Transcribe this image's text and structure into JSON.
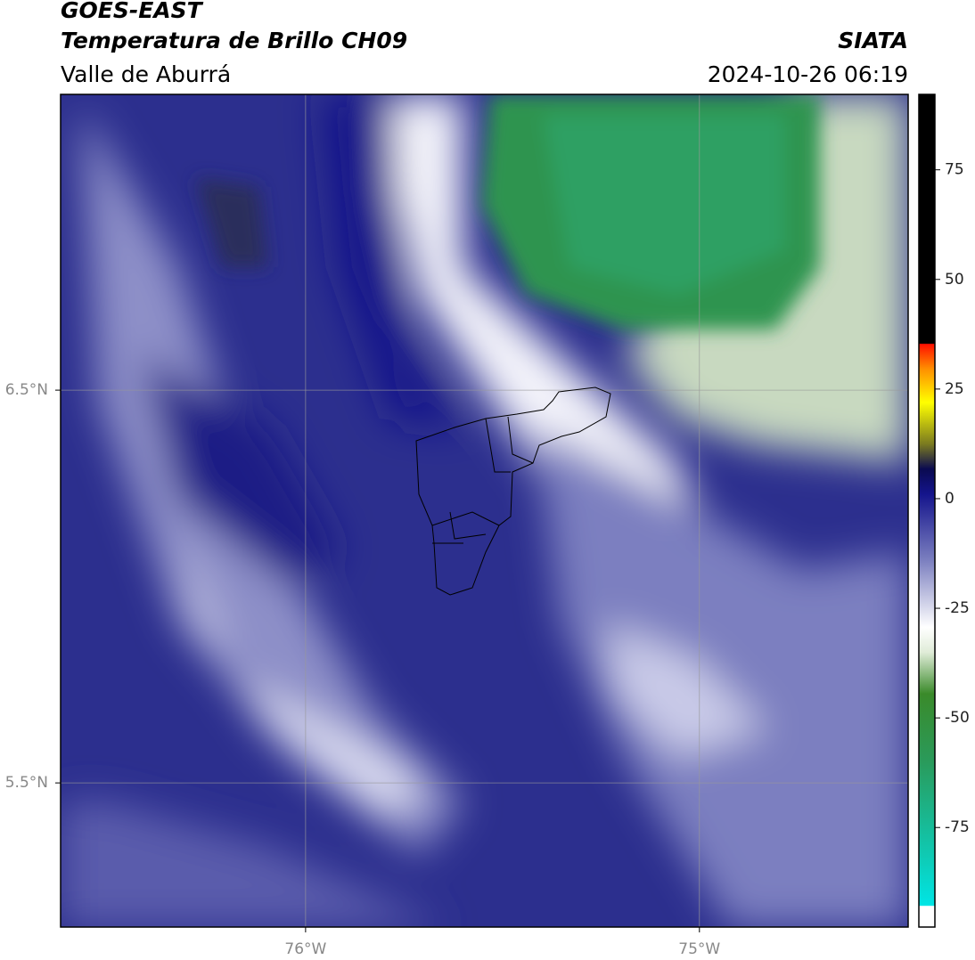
{
  "header": {
    "title": "GOES-EAST",
    "subtitle": "Temperatura de Brillo CH09",
    "region": "Valle de Aburrá",
    "source": "SIATA",
    "datetime": "2024-10-26 06:19"
  },
  "map": {
    "xlim": [
      -76.622,
      -74.47
    ],
    "ylim": [
      5.133,
      7.253
    ],
    "xticks": [
      {
        "value": -76,
        "label": "76°W"
      },
      {
        "value": -75,
        "label": "75°W"
      }
    ],
    "yticks": [
      {
        "value": 6.5,
        "label": "6.5°N"
      },
      {
        "value": 5.5,
        "label": "5.5°N"
      }
    ],
    "grid": true
  },
  "colorbar": {
    "lim": [
      -97.7,
      92.2
    ],
    "ticks": [
      75,
      50,
      25,
      0,
      -25,
      -50,
      -75
    ]
  }
}
